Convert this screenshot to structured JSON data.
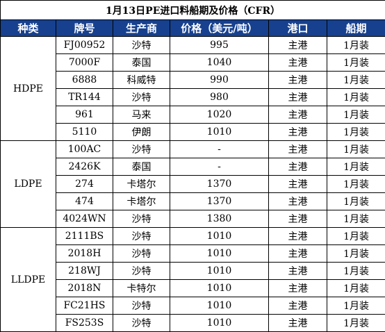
{
  "title": "1月13日PE进口料船期及价格（CFR）",
  "columns": [
    "种类",
    "牌号",
    "生产商",
    "价格（美元/吨）",
    "港口",
    "船期"
  ],
  "header_bg": "#17418f",
  "groups": [
    {
      "category": "HDPE",
      "rows": [
        {
          "grade": "FJ00952",
          "producer": "沙特",
          "price": "995",
          "port": "主港",
          "ship": "1月装"
        },
        {
          "grade": "7000F",
          "producer": "泰国",
          "price": "1040",
          "port": "主港",
          "ship": "1月装"
        },
        {
          "grade": "6888",
          "producer": "科威特",
          "price": "990",
          "port": "主港",
          "ship": "1月装"
        },
        {
          "grade": "TR144",
          "producer": "沙特",
          "price": "980",
          "port": "主港",
          "ship": "1月装"
        },
        {
          "grade": "961",
          "producer": "马来",
          "price": "1020",
          "port": "主港",
          "ship": "1月装"
        },
        {
          "grade": "5110",
          "producer": "伊朗",
          "price": "1010",
          "port": "主港",
          "ship": "1月装"
        }
      ]
    },
    {
      "category": "LDPE",
      "rows": [
        {
          "grade": "100AC",
          "producer": "沙特",
          "price": "-",
          "port": "主港",
          "ship": "1月装"
        },
        {
          "grade": "2426K",
          "producer": "泰国",
          "price": "-",
          "port": "主港",
          "ship": "1月装"
        },
        {
          "grade": "274",
          "producer": "卡塔尔",
          "price": "1370",
          "port": "主港",
          "ship": "1月装"
        },
        {
          "grade": "474",
          "producer": "卡塔尔",
          "price": "1370",
          "port": "主港",
          "ship": "1月装"
        },
        {
          "grade": "4024WN",
          "producer": "沙特",
          "price": "1380",
          "port": "主港",
          "ship": "1月装"
        }
      ]
    },
    {
      "category": "LLDPE",
      "rows": [
        {
          "grade": "2111BS",
          "producer": "沙特",
          "price": "1010",
          "port": "主港",
          "ship": "1月装"
        },
        {
          "grade": "2018H",
          "producer": "沙特",
          "price": "1010",
          "port": "主港",
          "ship": "1月装"
        },
        {
          "grade": "218WJ",
          "producer": "沙特",
          "price": "1010",
          "port": "主港",
          "ship": "1月装"
        },
        {
          "grade": "2018N",
          "producer": "卡特尔",
          "price": "1010",
          "port": "主港",
          "ship": "1月装"
        },
        {
          "grade": "FC21HS",
          "producer": "沙特",
          "price": "1010",
          "port": "主港",
          "ship": "1月装"
        },
        {
          "grade": "FS253S",
          "producer": "沙特",
          "price": "1010",
          "port": "主港",
          "ship": "1月装"
        }
      ]
    }
  ]
}
